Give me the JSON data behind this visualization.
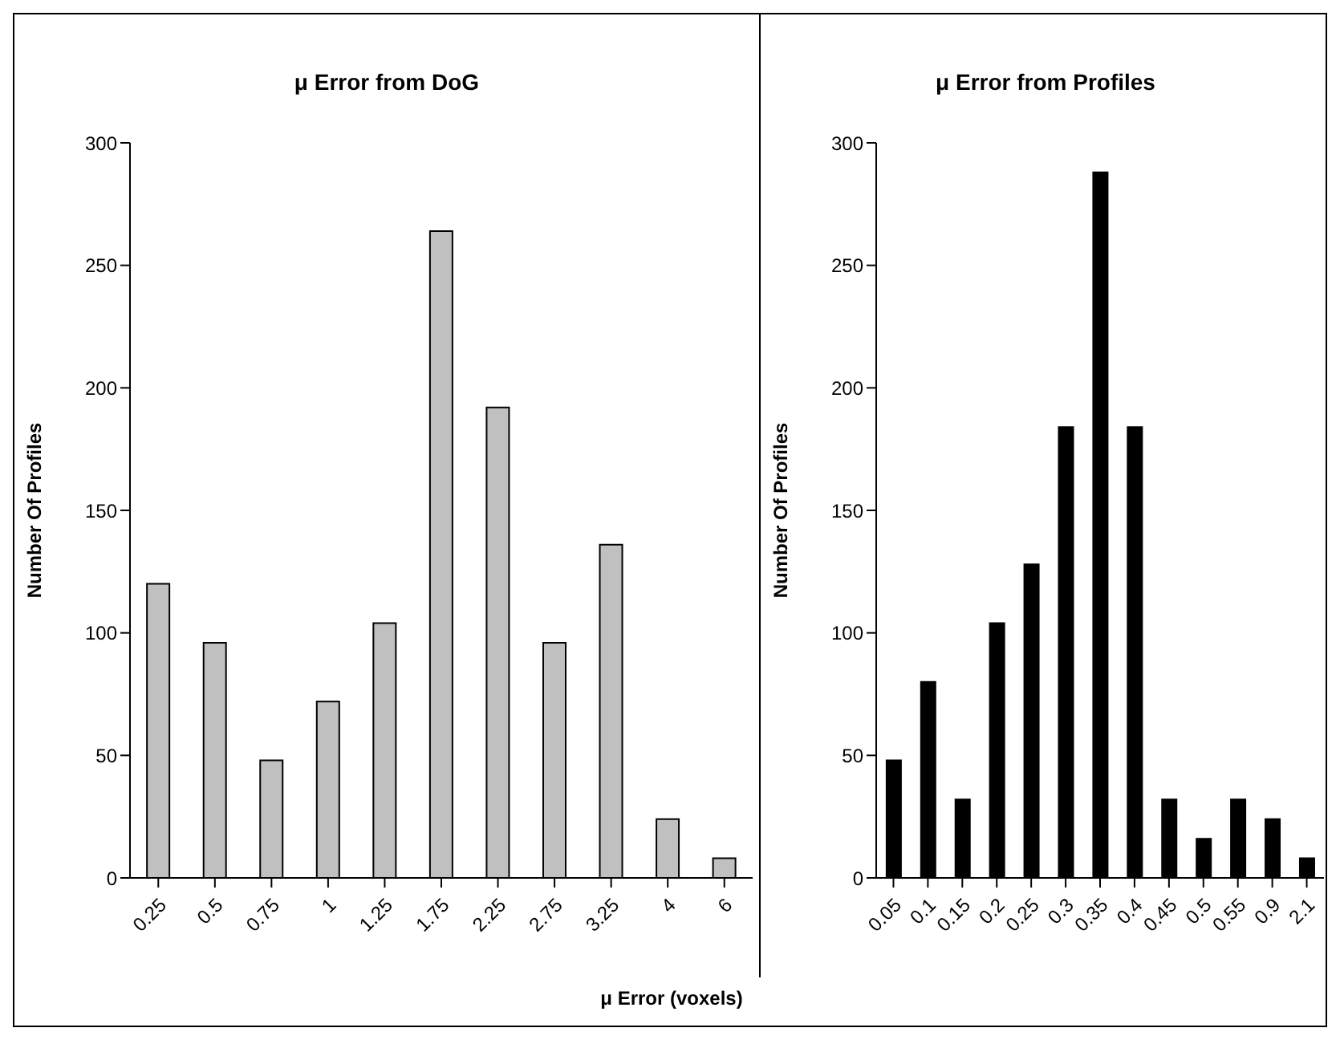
{
  "chart_data": [
    {
      "type": "bar",
      "title": "μ Error from DoG",
      "xlabel": "μ Error (voxels)",
      "ylabel": "Number Of Profiles",
      "categories": [
        "0.25",
        "0.5",
        "0.75",
        "1",
        "1.25",
        "1.75",
        "2.25",
        "2.75",
        "3.25",
        "4",
        "6"
      ],
      "values": [
        120,
        96,
        48,
        72,
        104,
        264,
        192,
        96,
        136,
        24,
        8
      ],
      "color": "#c0c0c0",
      "ylim": [
        0,
        300
      ],
      "yticks": [
        0,
        50,
        100,
        150,
        200,
        250,
        300
      ],
      "grid": false,
      "legend": false
    },
    {
      "type": "bar",
      "title": "μ Error from Profiles",
      "ylabel": "Number Of Profiles",
      "categories": [
        "0.05",
        "0.1",
        "0.15",
        "0.2",
        "0.25",
        "0.3",
        "0.35",
        "0.4",
        "0.45",
        "0.5",
        "0.55",
        "0.9",
        "2.1"
      ],
      "values": [
        48,
        80,
        32,
        104,
        128,
        184,
        288,
        184,
        32,
        16,
        32,
        24,
        8
      ],
      "color": "#000000",
      "ylim": [
        0,
        300
      ],
      "yticks": [
        0,
        50,
        100,
        150,
        200,
        250,
        300
      ],
      "grid": false,
      "legend": false
    }
  ]
}
